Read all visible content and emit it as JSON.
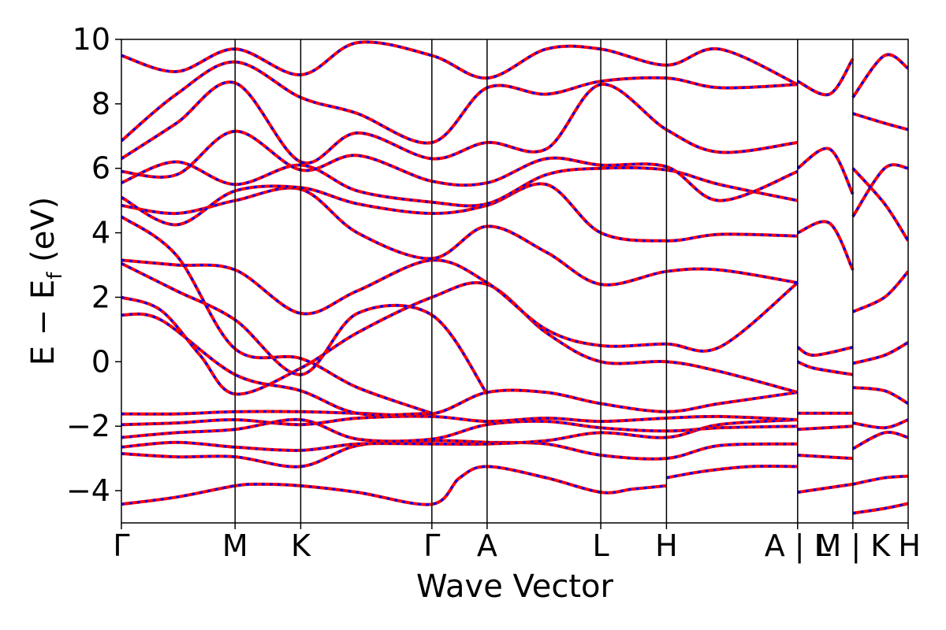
{
  "chart_data": {
    "type": "line",
    "title": "",
    "xlabel": "Wave Vector",
    "ylabel_main": "E − E",
    "ylabel_sub": "f",
    "ylabel_unit": " (eV)",
    "ylim": [
      -5,
      10
    ],
    "xlim": [
      0,
      1
    ],
    "grid": false,
    "legend": "none",
    "y_ticks": [
      {
        "value": -4,
        "label": "−4"
      },
      {
        "value": -2,
        "label": "−2"
      },
      {
        "value": 0,
        "label": "0"
      },
      {
        "value": 2,
        "label": "2"
      },
      {
        "value": 4,
        "label": "4"
      },
      {
        "value": 6,
        "label": "6"
      },
      {
        "value": 8,
        "label": "8"
      },
      {
        "value": 10,
        "label": "10"
      }
    ],
    "kpath_ticks": [
      {
        "x": 0.0,
        "label": "Γ"
      },
      {
        "x": 0.1445,
        "label": "M"
      },
      {
        "x": 0.2279,
        "label": "K"
      },
      {
        "x": 0.3946,
        "label": "Γ"
      },
      {
        "x": 0.4648,
        "label": "A"
      },
      {
        "x": 0.6093,
        "label": "L"
      },
      {
        "x": 0.6928,
        "label": "H"
      },
      {
        "x": 0.8595,
        "label": "A | L"
      },
      {
        "x": 0.9297,
        "label": "M | K"
      },
      {
        "x": 1.0,
        "label": "H"
      }
    ],
    "vlines": [
      0.1445,
      0.2279,
      0.3946,
      0.4648,
      0.6093,
      0.6928,
      0.8595,
      0.9297
    ],
    "series_colors": {
      "solid": "#ff0000",
      "dashed": "#0000ff"
    },
    "bands": [
      [
        [
          0,
          -4.42
        ],
        [
          0.07,
          -4.2
        ],
        [
          0.1445,
          -3.85
        ],
        [
          0.18,
          -3.8
        ],
        [
          0.2279,
          -3.85
        ],
        [
          0.3,
          -4.05
        ],
        [
          0.3946,
          -4.42
        ],
        [
          0.43,
          -3.6
        ],
        [
          0.4648,
          -3.25
        ],
        [
          0.54,
          -3.6
        ],
        [
          0.6093,
          -4.05
        ],
        [
          0.65,
          -3.95
        ],
        [
          0.6928,
          -3.85
        ]
      ],
      [
        [
          0.6928,
          -3.6
        ],
        [
          0.74,
          -3.4
        ],
        [
          0.8,
          -3.25
        ],
        [
          0.8595,
          -3.25
        ]
      ],
      [
        [
          0,
          -2.85
        ],
        [
          0.07,
          -2.95
        ],
        [
          0.1445,
          -2.95
        ],
        [
          0.2279,
          -3.25
        ],
        [
          0.3,
          -2.6
        ],
        [
          0.3946,
          -2.45
        ],
        [
          0.4648,
          -2.5
        ],
        [
          0.54,
          -2.55
        ],
        [
          0.6093,
          -2.9
        ],
        [
          0.6928,
          -3.0
        ],
        [
          0.76,
          -2.6
        ],
        [
          0.8595,
          -2.55
        ]
      ],
      [
        [
          0,
          -2.65
        ],
        [
          0.07,
          -2.5
        ],
        [
          0.1445,
          -2.65
        ],
        [
          0.2279,
          -2.75
        ],
        [
          0.3,
          -2.55
        ],
        [
          0.3946,
          -2.55
        ],
        [
          0.4648,
          -2.55
        ],
        [
          0.54,
          -2.45
        ],
        [
          0.6093,
          -2.2
        ],
        [
          0.6928,
          -2.35
        ],
        [
          0.76,
          -1.95
        ],
        [
          0.8595,
          -1.8
        ]
      ],
      [
        [
          0,
          -2.35
        ],
        [
          0.07,
          -2.2
        ],
        [
          0.1445,
          -2.1
        ],
        [
          0.2279,
          -1.8
        ],
        [
          0.3,
          -2.4
        ],
        [
          0.3946,
          -2.4
        ],
        [
          0.4648,
          -1.95
        ],
        [
          0.54,
          -1.85
        ],
        [
          0.6093,
          -2.05
        ],
        [
          0.6928,
          -2.15
        ],
        [
          0.76,
          -2.05
        ],
        [
          0.8595,
          -2.0
        ]
      ],
      [
        [
          0,
          -1.95
        ],
        [
          0.07,
          -1.9
        ],
        [
          0.1445,
          -1.8
        ],
        [
          0.2279,
          -1.95
        ],
        [
          0.3,
          -1.75
        ],
        [
          0.3946,
          -1.7
        ],
        [
          0.4648,
          -1.85
        ],
        [
          0.54,
          -1.75
        ],
        [
          0.6093,
          -1.85
        ],
        [
          0.6928,
          -1.75
        ],
        [
          0.76,
          -1.7
        ],
        [
          0.8595,
          -1.8
        ]
      ],
      [
        [
          0,
          -1.62
        ],
        [
          0.07,
          -1.62
        ],
        [
          0.1445,
          -1.55
        ],
        [
          0.2279,
          -1.55
        ],
        [
          0.3,
          -1.6
        ],
        [
          0.3946,
          -1.62
        ],
        [
          0.4648,
          -0.95
        ],
        [
          0.54,
          -0.95
        ],
        [
          0.6093,
          -1.3
        ],
        [
          0.6928,
          -1.55
        ],
        [
          0.76,
          -1.3
        ],
        [
          0.8595,
          -0.95
        ]
      ],
      [
        [
          0,
          2.0
        ],
        [
          0.05,
          1.6
        ],
        [
          0.1,
          0.2
        ],
        [
          0.1445,
          -1.0
        ],
        [
          0.2279,
          -0.2
        ],
        [
          0.3,
          0.9
        ],
        [
          0.3946,
          2.0
        ],
        [
          0.4648,
          2.4
        ],
        [
          0.54,
          0.9
        ],
        [
          0.6093,
          0.0
        ],
        [
          0.6928,
          0.0
        ],
        [
          0.76,
          -0.3
        ],
        [
          0.8595,
          -0.95
        ]
      ],
      [
        [
          0,
          1.45
        ],
        [
          0.05,
          1.3
        ],
        [
          0.1445,
          -0.4
        ],
        [
          0.2279,
          -0.9
        ],
        [
          0.3,
          -1.6
        ],
        [
          0.3946,
          -1.6
        ]
      ],
      [
        [
          0,
          3.15
        ],
        [
          0.07,
          3.0
        ],
        [
          0.1445,
          2.85
        ],
        [
          0.2279,
          1.5
        ],
        [
          0.3,
          2.2
        ],
        [
          0.3946,
          3.15
        ],
        [
          0.4648,
          2.45
        ],
        [
          0.54,
          1.0
        ],
        [
          0.6093,
          0.5
        ],
        [
          0.6928,
          0.55
        ],
        [
          0.76,
          0.45
        ],
        [
          0.8595,
          2.45
        ]
      ],
      [
        [
          0,
          3.05
        ],
        [
          0.07,
          2.2
        ],
        [
          0.1445,
          1.3
        ],
        [
          0.2279,
          -0.4
        ],
        [
          0.3,
          1.5
        ],
        [
          0.3946,
          1.45
        ],
        [
          0.4648,
          -1.0
        ]
      ],
      [
        [
          0,
          4.5
        ],
        [
          0.07,
          3.3
        ],
        [
          0.1445,
          0.4
        ],
        [
          0.2279,
          0.1
        ],
        [
          0.3,
          -0.8
        ],
        [
          0.3946,
          -1.6
        ]
      ],
      [
        [
          0,
          4.85
        ],
        [
          0.07,
          4.6
        ],
        [
          0.1445,
          5.0
        ],
        [
          0.2279,
          5.35
        ],
        [
          0.3,
          4.0
        ],
        [
          0.3946,
          3.2
        ],
        [
          0.4648,
          4.2
        ],
        [
          0.54,
          3.4
        ],
        [
          0.6093,
          2.4
        ],
        [
          0.6928,
          2.8
        ],
        [
          0.76,
          2.85
        ],
        [
          0.8595,
          2.45
        ]
      ],
      [
        [
          0,
          5.1
        ],
        [
          0.07,
          4.25
        ],
        [
          0.1445,
          5.3
        ],
        [
          0.2279,
          5.4
        ],
        [
          0.3,
          4.9
        ],
        [
          0.3946,
          4.6
        ],
        [
          0.4648,
          4.85
        ],
        [
          0.54,
          5.5
        ],
        [
          0.6093,
          4.0
        ],
        [
          0.6928,
          3.75
        ],
        [
          0.76,
          3.95
        ],
        [
          0.8595,
          3.9
        ]
      ],
      [
        [
          0,
          5.55
        ],
        [
          0.07,
          6.2
        ],
        [
          0.1445,
          5.5
        ],
        [
          0.2279,
          6.1
        ],
        [
          0.3,
          5.3
        ],
        [
          0.3946,
          4.95
        ],
        [
          0.4648,
          4.9
        ],
        [
          0.54,
          5.8
        ],
        [
          0.6093,
          6.0
        ],
        [
          0.6928,
          5.95
        ],
        [
          0.76,
          5.5
        ],
        [
          0.8595,
          5.0
        ]
      ],
      [
        [
          0,
          5.9
        ],
        [
          0.07,
          5.8
        ],
        [
          0.1445,
          7.15
        ],
        [
          0.2279,
          5.95
        ],
        [
          0.3,
          6.4
        ],
        [
          0.3946,
          5.6
        ],
        [
          0.4648,
          5.55
        ],
        [
          0.54,
          6.3
        ],
        [
          0.6093,
          6.1
        ],
        [
          0.6928,
          6.05
        ],
        [
          0.76,
          5.0
        ],
        [
          0.8595,
          5.9
        ]
      ],
      [
        [
          0,
          6.3
        ],
        [
          0.07,
          7.4
        ],
        [
          0.1445,
          8.65
        ],
        [
          0.2279,
          6.2
        ],
        [
          0.3,
          7.1
        ],
        [
          0.3946,
          6.3
        ],
        [
          0.4648,
          6.8
        ],
        [
          0.54,
          6.6
        ],
        [
          0.6093,
          8.6
        ],
        [
          0.6928,
          7.2
        ],
        [
          0.76,
          6.5
        ],
        [
          0.8595,
          6.8
        ]
      ],
      [
        [
          0,
          6.85
        ],
        [
          0.07,
          8.3
        ],
        [
          0.1445,
          9.3
        ],
        [
          0.2279,
          8.2
        ],
        [
          0.3,
          7.7
        ],
        [
          0.3946,
          6.8
        ],
        [
          0.4648,
          8.5
        ],
        [
          0.54,
          8.3
        ],
        [
          0.6093,
          8.7
        ],
        [
          0.6928,
          8.8
        ],
        [
          0.76,
          8.5
        ],
        [
          0.8595,
          8.6
        ]
      ],
      [
        [
          0,
          9.5
        ],
        [
          0.07,
          9.0
        ],
        [
          0.1445,
          9.7
        ],
        [
          0.2279,
          8.9
        ],
        [
          0.3,
          9.9
        ],
        [
          0.3946,
          9.5
        ],
        [
          0.4648,
          8.8
        ],
        [
          0.54,
          9.7
        ],
        [
          0.6093,
          9.7
        ],
        [
          0.6928,
          9.2
        ],
        [
          0.76,
          9.7
        ],
        [
          0.8595,
          8.6
        ]
      ],
      [
        [
          0.8595,
          0.45
        ],
        [
          0.88,
          0.2
        ],
        [
          0.9297,
          0.45
        ]
      ],
      [
        [
          0.8595,
          0.0
        ],
        [
          0.88,
          -0.2
        ],
        [
          0.9297,
          -0.4
        ]
      ],
      [
        [
          0.8595,
          -1.6
        ],
        [
          0.9297,
          -1.6
        ]
      ],
      [
        [
          0.8595,
          -2.1
        ],
        [
          0.9297,
          -2.0
        ]
      ],
      [
        [
          0.8595,
          -2.9
        ],
        [
          0.9297,
          -3.0
        ]
      ],
      [
        [
          0.8595,
          -4.05
        ],
        [
          0.9297,
          -3.8
        ]
      ],
      [
        [
          0.8595,
          4.0
        ],
        [
          0.9,
          4.3
        ],
        [
          0.9297,
          2.85
        ]
      ],
      [
        [
          0.8595,
          6.0
        ],
        [
          0.9,
          6.6
        ],
        [
          0.9297,
          5.2
        ]
      ],
      [
        [
          0.8595,
          8.7
        ],
        [
          0.9,
          8.3
        ],
        [
          0.9297,
          9.4
        ]
      ],
      [
        [
          0.9297,
          1.55
        ],
        [
          0.97,
          2.0
        ],
        [
          1.0,
          2.8
        ]
      ],
      [
        [
          0.9297,
          4.5
        ],
        [
          0.97,
          6.0
        ],
        [
          1.0,
          6.0
        ]
      ],
      [
        [
          0.9297,
          6.0
        ],
        [
          0.97,
          4.9
        ],
        [
          1.0,
          3.75
        ]
      ],
      [
        [
          0.9297,
          -0.05
        ],
        [
          0.97,
          0.2
        ],
        [
          1.0,
          0.6
        ]
      ],
      [
        [
          0.9297,
          -0.8
        ],
        [
          0.97,
          -0.9
        ],
        [
          1.0,
          -1.3
        ]
      ],
      [
        [
          0.9297,
          -1.9
        ],
        [
          0.97,
          -2.05
        ],
        [
          1.0,
          -1.8
        ]
      ],
      [
        [
          0.9297,
          -2.7
        ],
        [
          0.97,
          -2.2
        ],
        [
          1.0,
          -2.35
        ]
      ],
      [
        [
          0.9297,
          -3.8
        ],
        [
          0.97,
          -3.6
        ],
        [
          1.0,
          -3.55
        ]
      ],
      [
        [
          0.9297,
          -4.7
        ],
        [
          0.97,
          -4.55
        ],
        [
          1.0,
          -4.4
        ]
      ],
      [
        [
          0.9297,
          8.2
        ],
        [
          0.97,
          9.5
        ],
        [
          1.0,
          9.1
        ]
      ],
      [
        [
          0.9297,
          7.7
        ],
        [
          0.97,
          7.4
        ],
        [
          1.0,
          7.2
        ]
      ]
    ]
  }
}
